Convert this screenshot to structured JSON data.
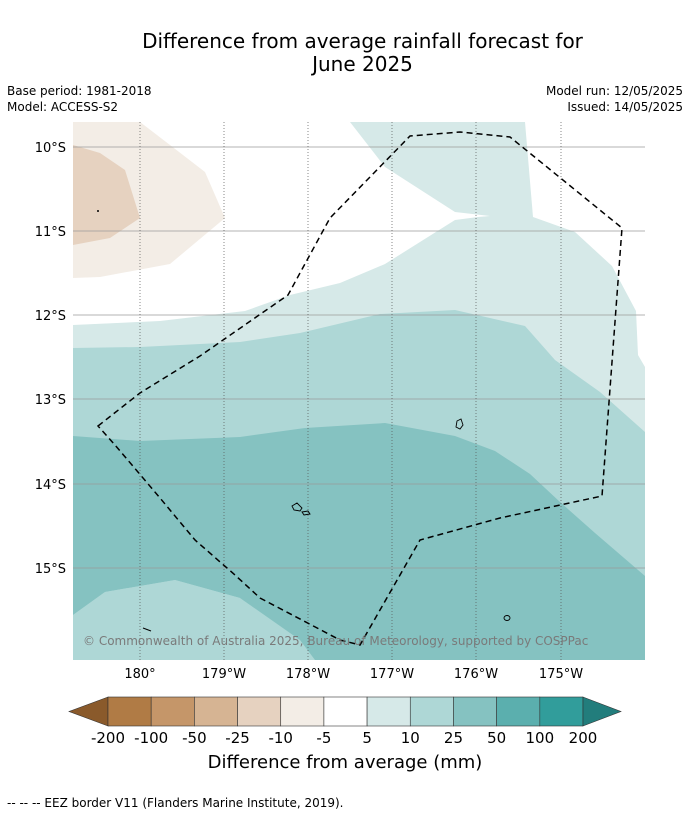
{
  "title_line1": "Difference from average rainfall forecast for",
  "title_line2": "June 2025",
  "meta_left": {
    "base_period": "Base period: 1981-2018",
    "model": "Model: ACCESS-S2"
  },
  "meta_right": {
    "model_run": "Model run: 12/05/2025",
    "issued": "Issued: 14/05/2025"
  },
  "lat_labels": [
    "10°S",
    "11°S",
    "12°S",
    "13°S",
    "14°S",
    "15°S"
  ],
  "lon_labels": [
    "180°",
    "179°W",
    "178°W",
    "177°W",
    "176°W",
    "175°W"
  ],
  "copyright": "© Commonwealth of Australia 2025, Bureau of Meteorology, supported by COSPPac",
  "colorbar": {
    "tick_labels": [
      "-200",
      "-100",
      "-50",
      "-25",
      "-10",
      "-5",
      "5",
      "10",
      "25",
      "50",
      "100",
      "200"
    ],
    "label": "Difference from average (mm)",
    "colors": [
      "#8a5a2b",
      "#b07b45",
      "#c59669",
      "#d6b493",
      "#e6d2c0",
      "#f3ede6",
      "#ffffff",
      "#d6e9e8",
      "#aed7d6",
      "#85c2c1",
      "#5bafae",
      "#319d9b",
      "#227d7c"
    ]
  },
  "footer": "--  --  -- EEZ border V11 (Flanders Marine Institute, 2019)."
}
